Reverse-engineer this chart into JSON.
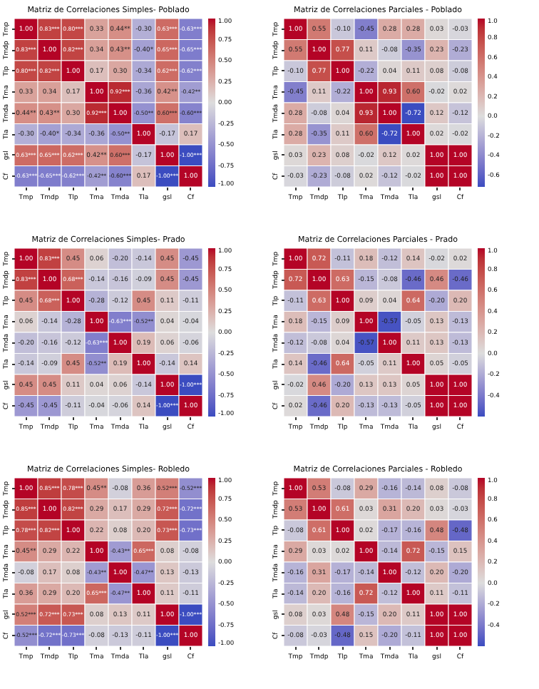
{
  "chart_data": [
    {
      "type": "heatmap",
      "title": "Matriz de Correlaciones Simples- Poblado",
      "categories": [
        "Tmp",
        "Tmdp",
        "Tlp",
        "Tma",
        "Tmda",
        "Tla",
        "gsl",
        "Cf"
      ],
      "y_categories": [
        "Tmp",
        "Tmdp",
        "Tlp",
        "Tma",
        "Tmda",
        "Tla",
        "gsl",
        "Cf"
      ],
      "cells": [
        [
          1.0,
          0.83,
          0.8,
          0.33,
          0.44,
          -0.3,
          0.63,
          -0.63
        ],
        [
          0.83,
          1.0,
          0.82,
          0.34,
          0.43,
          -0.4,
          0.65,
          -0.65
        ],
        [
          0.8,
          0.82,
          1.0,
          0.17,
          0.3,
          -0.34,
          0.62,
          -0.62
        ],
        [
          0.33,
          0.34,
          0.17,
          1.0,
          0.92,
          -0.36,
          0.42,
          -0.42
        ],
        [
          0.44,
          0.43,
          0.3,
          0.92,
          1.0,
          -0.5,
          0.6,
          -0.6
        ],
        [
          -0.3,
          -0.4,
          -0.34,
          -0.36,
          -0.5,
          1.0,
          -0.17,
          0.17
        ],
        [
          0.63,
          0.65,
          0.62,
          0.42,
          0.6,
          -0.17,
          1.0,
          -1.0
        ],
        [
          -0.63,
          -0.65,
          -0.62,
          -0.42,
          -0.6,
          0.17,
          -1.0,
          1.0
        ]
      ],
      "cell_labels": [
        [
          "1.00",
          "0.83***",
          "0.80***",
          "0.33",
          "0.44**",
          "-0.30",
          "0.63***",
          "-0.63***"
        ],
        [
          "0.83***",
          "1.00",
          "0.82***",
          "0.34",
          "0.43**",
          "-0.40*",
          "0.65***",
          "-0.65***"
        ],
        [
          "0.80***",
          "0.82***",
          "1.00",
          "0.17",
          "0.30",
          "-0.34",
          "0.62***",
          "-0.62***"
        ],
        [
          "0.33",
          "0.34",
          "0.17",
          "1.00",
          "0.92***",
          "-0.36",
          "0.42**",
          "-0.42**"
        ],
        [
          "0.44**",
          "0.43**",
          "0.30",
          "0.92***",
          "1.00",
          "-0.50**",
          "0.60***",
          "-0.60***"
        ],
        [
          "-0.30",
          "-0.40*",
          "-0.34",
          "-0.36",
          "-0.50**",
          "1.00",
          "-0.17",
          "0.17"
        ],
        [
          "0.63***",
          "0.65***",
          "0.62***",
          "0.42**",
          "0.60***",
          "-0.17",
          "1.00",
          "-1.00***"
        ],
        [
          "-0.63***",
          "-0.65***",
          "-0.62***",
          "-0.42**",
          "-0.60***",
          "0.17",
          "-1.00***",
          "1.00"
        ]
      ],
      "clim": [
        -1,
        1
      ],
      "cticks": [
        {
          "value": -1,
          "label": "-1.00"
        },
        {
          "value": -0.75,
          "label": "-0.75"
        },
        {
          "value": -0.5,
          "label": "-0.50"
        },
        {
          "value": -0.25,
          "label": "-0.25"
        },
        {
          "value": 0,
          "label": "0.00"
        },
        {
          "value": 0.25,
          "label": "0.25"
        },
        {
          "value": 0.5,
          "label": "0.50"
        },
        {
          "value": 0.75,
          "label": "0.75"
        },
        {
          "value": 1,
          "label": "1.00"
        }
      ]
    },
    {
      "type": "heatmap",
      "title": "Matriz de Correlaciones Parciales - Poblado",
      "categories": [
        "Tmp",
        "Tmdp",
        "Tlp",
        "Tma",
        "Tmda",
        "Tla",
        "gsl",
        "Cf"
      ],
      "y_categories": [
        "Tmp",
        "Tmdp",
        "Tlp",
        "Tma",
        "Tmda",
        "Tla",
        "gsl",
        "Cf"
      ],
      "cells": [
        [
          1.0,
          0.55,
          -0.1,
          -0.45,
          0.28,
          0.28,
          0.03,
          -0.03
        ],
        [
          0.55,
          1.0,
          0.77,
          0.11,
          -0.08,
          -0.35,
          0.23,
          -0.23
        ],
        [
          -0.1,
          0.77,
          1.0,
          -0.22,
          0.04,
          0.11,
          0.08,
          -0.08
        ],
        [
          -0.45,
          0.11,
          -0.22,
          1.0,
          0.93,
          0.6,
          -0.02,
          0.02
        ],
        [
          0.28,
          -0.08,
          0.04,
          0.93,
          1.0,
          -0.72,
          0.12,
          -0.12
        ],
        [
          0.28,
          -0.35,
          0.11,
          0.6,
          -0.72,
          1.0,
          0.02,
          -0.02
        ],
        [
          0.03,
          0.23,
          0.08,
          -0.02,
          0.12,
          0.02,
          1.0,
          1.0
        ],
        [
          -0.03,
          -0.23,
          -0.08,
          0.02,
          -0.12,
          -0.02,
          1.0,
          1.0
        ]
      ],
      "cell_labels": [
        [
          "1.00",
          "0.55",
          "-0.10",
          "-0.45",
          "0.28",
          "0.28",
          "0.03",
          "-0.03"
        ],
        [
          "0.55",
          "1.00",
          "0.77",
          "0.11",
          "-0.08",
          "-0.35",
          "0.23",
          "-0.23"
        ],
        [
          "-0.10",
          "0.77",
          "1.00",
          "-0.22",
          "0.04",
          "0.11",
          "0.08",
          "-0.08"
        ],
        [
          "-0.45",
          "0.11",
          "-0.22",
          "1.00",
          "0.93",
          "0.60",
          "-0.02",
          "0.02"
        ],
        [
          "0.28",
          "-0.08",
          "0.04",
          "0.93",
          "1.00",
          "-0.72",
          "0.12",
          "-0.12"
        ],
        [
          "0.28",
          "-0.35",
          "0.11",
          "0.60",
          "-0.72",
          "1.00",
          "0.02",
          "-0.02"
        ],
        [
          "0.03",
          "0.23",
          "0.08",
          "-0.02",
          "0.12",
          "0.02",
          "1.00",
          "1.00"
        ],
        [
          "-0.03",
          "-0.23",
          "-0.08",
          "0.02",
          "-0.12",
          "-0.02",
          "1.00",
          "1.00"
        ]
      ],
      "clim": [
        -0.72,
        1
      ],
      "cticks": [
        {
          "value": -0.6,
          "label": "-0.6"
        },
        {
          "value": -0.4,
          "label": "-0.4"
        },
        {
          "value": -0.2,
          "label": "-0.2"
        },
        {
          "value": 0,
          "label": "0.0"
        },
        {
          "value": 0.2,
          "label": "0.2"
        },
        {
          "value": 0.4,
          "label": "0.4"
        },
        {
          "value": 0.6,
          "label": "0.6"
        },
        {
          "value": 0.8,
          "label": "0.8"
        },
        {
          "value": 1,
          "label": "1.0"
        }
      ]
    },
    {
      "type": "heatmap",
      "title": "Matriz de Correlaciones Simples- Prado",
      "categories": [
        "Tmp",
        "Tmdp",
        "Tlp",
        "Tma",
        "Tmda",
        "Tla",
        "gsl",
        "Cf"
      ],
      "y_categories": [
        "Tmp",
        "Tmdp",
        "Tlp",
        "Tma",
        "Tmda",
        "Tla",
        "gsl",
        "Cf"
      ],
      "cells": [
        [
          1.0,
          0.83,
          0.45,
          0.06,
          -0.2,
          -0.14,
          0.45,
          -0.45
        ],
        [
          0.83,
          1.0,
          0.68,
          -0.14,
          -0.16,
          -0.09,
          0.45,
          -0.45
        ],
        [
          0.45,
          0.68,
          1.0,
          -0.28,
          -0.12,
          0.45,
          0.11,
          -0.11
        ],
        [
          0.06,
          -0.14,
          -0.28,
          1.0,
          -0.63,
          -0.52,
          0.04,
          -0.04
        ],
        [
          -0.2,
          -0.16,
          -0.12,
          -0.63,
          1.0,
          0.19,
          0.06,
          -0.06
        ],
        [
          -0.14,
          -0.09,
          0.45,
          -0.52,
          0.19,
          1.0,
          -0.14,
          0.14
        ],
        [
          0.45,
          0.45,
          0.11,
          0.04,
          0.06,
          -0.14,
          1.0,
          -1.0
        ],
        [
          -0.45,
          -0.45,
          -0.11,
          -0.04,
          -0.06,
          0.14,
          -1.0,
          1.0
        ]
      ],
      "cell_labels": [
        [
          "1.00",
          "0.83***",
          "0.45",
          "0.06",
          "-0.20",
          "-0.14",
          "0.45",
          "-0.45"
        ],
        [
          "0.83***",
          "1.00",
          "0.68***",
          "-0.14",
          "-0.16",
          "-0.09",
          "0.45",
          "-0.45"
        ],
        [
          "0.45",
          "0.68***",
          "1.00",
          "-0.28",
          "-0.12",
          "0.45",
          "0.11",
          "-0.11"
        ],
        [
          "0.06",
          "-0.14",
          "-0.28",
          "1.00",
          "-0.63***",
          "-0.52**",
          "0.04",
          "-0.04"
        ],
        [
          "-0.20",
          "-0.16",
          "-0.12",
          "-0.63***",
          "1.00",
          "0.19",
          "0.06",
          "-0.06"
        ],
        [
          "-0.14",
          "-0.09",
          "0.45",
          "-0.52**",
          "0.19",
          "1.00",
          "-0.14",
          "0.14"
        ],
        [
          "0.45",
          "0.45",
          "0.11",
          "0.04",
          "0.06",
          "-0.14",
          "1.00",
          "-1.00***"
        ],
        [
          "-0.45",
          "-0.45",
          "-0.11",
          "-0.04",
          "-0.06",
          "0.14",
          "-1.00***",
          "1.00"
        ]
      ],
      "clim": [
        -1,
        1
      ],
      "cticks": [
        {
          "value": -1,
          "label": "-1.00"
        },
        {
          "value": -0.75,
          "label": "-0.75"
        },
        {
          "value": -0.5,
          "label": "-0.50"
        },
        {
          "value": -0.25,
          "label": "-0.25"
        },
        {
          "value": 0,
          "label": "0.00"
        },
        {
          "value": 0.25,
          "label": "0.25"
        },
        {
          "value": 0.5,
          "label": "0.50"
        },
        {
          "value": 0.75,
          "label": "0.75"
        },
        {
          "value": 1,
          "label": "1.00"
        }
      ]
    },
    {
      "type": "heatmap",
      "title": "Matriz de Correlaciones Parciales - Prado",
      "categories": [
        "Tmp",
        "Tmdp",
        "Tlp",
        "Tma",
        "Tmda",
        "Tla",
        "gsl",
        "Cf"
      ],
      "y_categories": [
        "Tmp",
        "Tmdp",
        "Tlp",
        "Tma",
        "Tmda",
        "Tla",
        "gsl",
        "Cf"
      ],
      "cells": [
        [
          1.0,
          0.72,
          -0.11,
          0.18,
          -0.12,
          0.14,
          -0.02,
          0.02
        ],
        [
          0.72,
          1.0,
          0.63,
          -0.15,
          -0.08,
          -0.46,
          0.46,
          -0.46
        ],
        [
          -0.11,
          0.63,
          1.0,
          0.09,
          0.04,
          0.64,
          -0.2,
          0.2
        ],
        [
          0.18,
          -0.15,
          0.09,
          1.0,
          -0.57,
          -0.05,
          0.13,
          -0.13
        ],
        [
          -0.12,
          -0.08,
          0.04,
          -0.57,
          1.0,
          0.11,
          0.13,
          -0.13
        ],
        [
          0.14,
          -0.46,
          0.64,
          -0.05,
          0.11,
          1.0,
          0.05,
          -0.05
        ],
        [
          -0.02,
          0.46,
          -0.2,
          0.13,
          0.13,
          0.05,
          1.0,
          1.0
        ],
        [
          0.02,
          -0.46,
          0.2,
          -0.13,
          -0.13,
          -0.05,
          1.0,
          1.0
        ]
      ],
      "cell_labels": [
        [
          "1.00",
          "0.72",
          "-0.11",
          "0.18",
          "-0.12",
          "0.14",
          "-0.02",
          "0.02"
        ],
        [
          "0.72",
          "1.00",
          "0.63",
          "-0.15",
          "-0.08",
          "-0.46",
          "0.46",
          "-0.46"
        ],
        [
          "-0.11",
          "0.63",
          "1.00",
          "0.09",
          "0.04",
          "0.64",
          "-0.20",
          "0.20"
        ],
        [
          "0.18",
          "-0.15",
          "0.09",
          "1.00",
          "-0.57",
          "-0.05",
          "0.13",
          "-0.13"
        ],
        [
          "-0.12",
          "-0.08",
          "0.04",
          "-0.57",
          "1.00",
          "0.11",
          "0.13",
          "-0.13"
        ],
        [
          "0.14",
          "-0.46",
          "0.64",
          "-0.05",
          "0.11",
          "1.00",
          "0.05",
          "-0.05"
        ],
        [
          "-0.02",
          "0.46",
          "-0.20",
          "0.13",
          "0.13",
          "0.05",
          "1.00",
          "1.00"
        ],
        [
          "0.02",
          "-0.46",
          "0.20",
          "-0.13",
          "-0.13",
          "-0.05",
          "1.00",
          "1.00"
        ]
      ],
      "clim": [
        -0.6,
        1
      ],
      "cticks": [
        {
          "value": -0.4,
          "label": "-0.4"
        },
        {
          "value": -0.2,
          "label": "-0.2"
        },
        {
          "value": 0,
          "label": "0.0"
        },
        {
          "value": 0.2,
          "label": "0.2"
        },
        {
          "value": 0.4,
          "label": "0.4"
        },
        {
          "value": 0.6,
          "label": "0.6"
        },
        {
          "value": 0.8,
          "label": "0.8"
        },
        {
          "value": 1,
          "label": "1.0"
        }
      ]
    },
    {
      "type": "heatmap",
      "title": "Matriz de Correlaciones Simples- Robledo",
      "categories": [
        "Tmp",
        "Tmdp",
        "Tlp",
        "Tma",
        "Tmda",
        "Tla",
        "gsl",
        "Cf"
      ],
      "y_categories": [
        "Tmp",
        "Tmdp",
        "Tlp",
        "Tma",
        "Tmda",
        "Tla",
        "gsl",
        "Cf"
      ],
      "cells": [
        [
          1.0,
          0.85,
          0.78,
          0.45,
          -0.08,
          0.36,
          0.52,
          -0.52
        ],
        [
          0.85,
          1.0,
          0.82,
          0.29,
          0.17,
          0.29,
          0.72,
          -0.72
        ],
        [
          0.78,
          0.82,
          1.0,
          0.22,
          0.08,
          0.2,
          0.73,
          -0.73
        ],
        [
          0.45,
          0.29,
          0.22,
          1.0,
          -0.43,
          0.65,
          0.08,
          -0.08
        ],
        [
          -0.08,
          0.17,
          0.08,
          -0.43,
          1.0,
          -0.47,
          0.13,
          -0.13
        ],
        [
          0.36,
          0.29,
          0.2,
          0.65,
          -0.47,
          1.0,
          0.11,
          -0.11
        ],
        [
          0.52,
          0.72,
          0.73,
          0.08,
          0.13,
          0.11,
          1.0,
          -1.0
        ],
        [
          -0.52,
          -0.72,
          -0.73,
          -0.08,
          -0.13,
          -0.11,
          -1.0,
          1.0
        ]
      ],
      "cell_labels": [
        [
          "1.00",
          "0.85***",
          "0.78***",
          "0.45**",
          "-0.08",
          "0.36",
          "0.52***",
          "-0.52***"
        ],
        [
          "0.85***",
          "1.00",
          "0.82***",
          "0.29",
          "0.17",
          "0.29",
          "0.72***",
          "-0.72***"
        ],
        [
          "0.78***",
          "0.82***",
          "1.00",
          "0.22",
          "0.08",
          "0.20",
          "0.73***",
          "-0.73***"
        ],
        [
          "0.45**",
          "0.29",
          "0.22",
          "1.00",
          "-0.43**",
          "0.65***",
          "0.08",
          "-0.08"
        ],
        [
          "-0.08",
          "0.17",
          "0.08",
          "-0.43**",
          "1.00",
          "-0.47**",
          "0.13",
          "-0.13"
        ],
        [
          "0.36",
          "0.29",
          "0.20",
          "0.65***",
          "-0.47**",
          "1.00",
          "0.11",
          "-0.11"
        ],
        [
          "0.52***",
          "0.72***",
          "0.73***",
          "0.08",
          "0.13",
          "0.11",
          "1.00",
          "-1.00***"
        ],
        [
          "-0.52***",
          "-0.72***",
          "-0.73***",
          "-0.08",
          "-0.13",
          "-0.11",
          "-1.00***",
          "1.00"
        ]
      ],
      "clim": [
        -1,
        1
      ],
      "cticks": [
        {
          "value": -1,
          "label": "-1.00"
        },
        {
          "value": -0.75,
          "label": "-0.75"
        },
        {
          "value": -0.5,
          "label": "-0.50"
        },
        {
          "value": -0.25,
          "label": "-0.25"
        },
        {
          "value": 0,
          "label": "0.00"
        },
        {
          "value": 0.25,
          "label": "0.25"
        },
        {
          "value": 0.5,
          "label": "0.50"
        },
        {
          "value": 0.75,
          "label": "0.75"
        },
        {
          "value": 1,
          "label": "1.00"
        }
      ]
    },
    {
      "type": "heatmap",
      "title": "Matriz de Correlaciones Parciales - Robledo",
      "categories": [
        "Tmp",
        "Tmdp",
        "Tlp",
        "Tma",
        "Tmda",
        "Tla",
        "gsl",
        "Cf"
      ],
      "y_categories": [
        "Tmp",
        "Tmdp",
        "Tlp",
        "Tma",
        "Tmda",
        "Tla",
        "gsl",
        "Cf"
      ],
      "cells": [
        [
          1.0,
          0.53,
          -0.08,
          0.29,
          -0.16,
          -0.14,
          0.08,
          -0.08
        ],
        [
          0.53,
          1.0,
          0.61,
          0.03,
          0.31,
          0.2,
          0.03,
          -0.03
        ],
        [
          -0.08,
          0.61,
          1.0,
          0.02,
          -0.17,
          -0.16,
          0.48,
          -0.48
        ],
        [
          0.29,
          0.03,
          0.02,
          1.0,
          -0.14,
          0.72,
          -0.15,
          0.15
        ],
        [
          -0.16,
          0.31,
          -0.17,
          -0.14,
          1.0,
          -0.12,
          0.2,
          -0.2
        ],
        [
          -0.14,
          0.2,
          -0.16,
          0.72,
          -0.12,
          1.0,
          0.11,
          -0.11
        ],
        [
          0.08,
          0.03,
          0.48,
          -0.15,
          0.2,
          0.11,
          1.0,
          1.0
        ],
        [
          -0.08,
          -0.03,
          -0.48,
          0.15,
          -0.2,
          -0.11,
          1.0,
          1.0
        ]
      ],
      "cell_labels": [
        [
          "1.00",
          "0.53",
          "-0.08",
          "0.29",
          "-0.16",
          "-0.14",
          "0.08",
          "-0.08"
        ],
        [
          "0.53",
          "1.00",
          "0.61",
          "0.03",
          "0.31",
          "0.20",
          "0.03",
          "-0.03"
        ],
        [
          "-0.08",
          "0.61",
          "1.00",
          "0.02",
          "-0.17",
          "-0.16",
          "0.48",
          "-0.48"
        ],
        [
          "0.29",
          "0.03",
          "0.02",
          "1.00",
          "-0.14",
          "0.72",
          "-0.15",
          "0.15"
        ],
        [
          "-0.16",
          "0.31",
          "-0.17",
          "-0.14",
          "1.00",
          "-0.12",
          "0.20",
          "-0.20"
        ],
        [
          "-0.14",
          "0.20",
          "-0.16",
          "0.72",
          "-0.12",
          "1.00",
          "0.11",
          "-0.11"
        ],
        [
          "0.08",
          "0.03",
          "0.48",
          "-0.15",
          "0.20",
          "0.11",
          "1.00",
          "1.00"
        ],
        [
          "-0.08",
          "-0.03",
          "-0.48",
          "0.15",
          "-0.20",
          "-0.11",
          "1.00",
          "1.00"
        ]
      ],
      "clim": [
        -0.6,
        1
      ],
      "cticks": [
        {
          "value": -0.4,
          "label": "-0.4"
        },
        {
          "value": -0.2,
          "label": "-0.2"
        },
        {
          "value": 0,
          "label": "0.0"
        },
        {
          "value": 0.2,
          "label": "0.2"
        },
        {
          "value": 0.4,
          "label": "0.4"
        },
        {
          "value": 0.6,
          "label": "0.6"
        },
        {
          "value": 0.8,
          "label": "0.8"
        },
        {
          "value": 1,
          "label": "1.0"
        }
      ]
    }
  ]
}
